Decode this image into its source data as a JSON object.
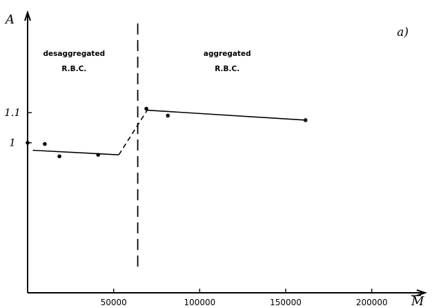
{
  "chart_data": {
    "type": "line",
    "panel_label": "a)",
    "xlabel": "M",
    "ylabel": "A",
    "xlim": [
      0,
      235000
    ],
    "ylim": [
      0.5,
      1.43
    ],
    "x_ticks": [
      {
        "value": 50000,
        "label": "50000"
      },
      {
        "value": 100000,
        "label": "100000"
      },
      {
        "value": 150000,
        "label": "150000"
      },
      {
        "value": 200000,
        "label": "200000"
      }
    ],
    "y_ticks": [
      {
        "value": 1.0,
        "label": "1"
      },
      {
        "value": 1.1,
        "label": "1.1"
      }
    ],
    "divider_x": 64000,
    "regions": [
      {
        "lines": [
          "desaggregated",
          "R.B.C."
        ],
        "x": 27000
      },
      {
        "lines": [
          "aggregated",
          "R.B.C."
        ],
        "x": 116000
      }
    ],
    "series": [
      {
        "points": [
          {
            "x": 0,
            "y": 1.0
          },
          {
            "x": 10000,
            "y": 0.996
          },
          {
            "x": 18500,
            "y": 0.955
          },
          {
            "x": 41000,
            "y": 0.96
          },
          {
            "x": 69000,
            "y": 1.113
          },
          {
            "x": 81500,
            "y": 1.09
          },
          {
            "x": 161500,
            "y": 1.075
          }
        ],
        "fit_segments": [
          {
            "x1": 3000,
            "y1": 0.975,
            "x2": 53000,
            "y2": 0.96,
            "style": "solid"
          },
          {
            "x1": 53000,
            "y1": 0.96,
            "x2": 69500,
            "y2": 1.108,
            "style": "dashed"
          },
          {
            "x1": 69500,
            "y1": 1.108,
            "x2": 161500,
            "y2": 1.075,
            "style": "solid"
          }
        ]
      }
    ]
  }
}
